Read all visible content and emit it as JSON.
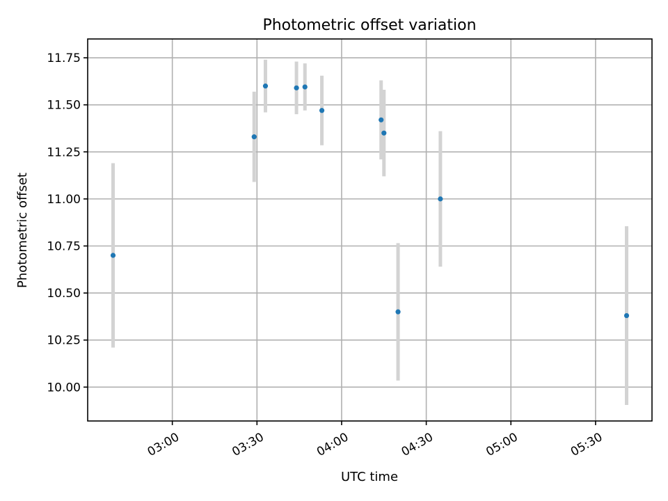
{
  "chart_data": {
    "type": "scatter",
    "title": "Photometric offset variation",
    "xlabel": "UTC time",
    "ylabel": "Photometric offset",
    "grid": true,
    "xlim": [
      "02:30",
      "05:50"
    ],
    "ylim": [
      9.82,
      11.85
    ],
    "x_ticks": [
      "03:00",
      "03:30",
      "04:00",
      "04:30",
      "05:00",
      "05:30"
    ],
    "y_ticks": [
      "10.00",
      "10.25",
      "10.50",
      "10.75",
      "11.00",
      "11.25",
      "11.50",
      "11.75"
    ],
    "colors": {
      "points": "#1f77b4",
      "error_bars": "#d3d3d3",
      "grid": "#b0b0b0"
    },
    "series": [
      {
        "points": [
          {
            "x": "02:39",
            "y": 10.7,
            "err": 0.49
          },
          {
            "x": "03:29",
            "y": 11.33,
            "err": 0.24
          },
          {
            "x": "03:33",
            "y": 11.6,
            "err": 0.14
          },
          {
            "x": "03:44",
            "y": 11.59,
            "err": 0.14
          },
          {
            "x": "03:47",
            "y": 11.595,
            "err": 0.125
          },
          {
            "x": "03:53",
            "y": 11.47,
            "err": 0.185
          },
          {
            "x": "04:14",
            "y": 11.42,
            "err": 0.21
          },
          {
            "x": "04:15",
            "y": 11.35,
            "err": 0.23
          },
          {
            "x": "04:20",
            "y": 10.4,
            "err": 0.365
          },
          {
            "x": "04:35",
            "y": 11.0,
            "err": 0.36
          },
          {
            "x": "05:41",
            "y": 10.38,
            "err": 0.475
          }
        ]
      }
    ]
  }
}
